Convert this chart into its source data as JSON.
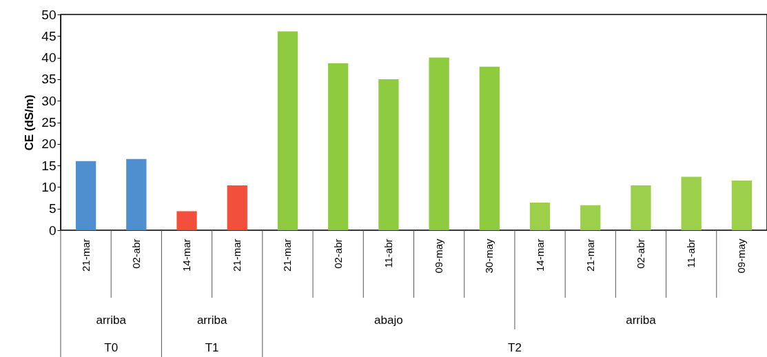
{
  "chart_data": {
    "type": "bar",
    "ylabel": "CE (dS/m)",
    "categories": [
      "21-mar",
      "02-abr",
      "14-mar",
      "21-mar",
      "21-mar",
      "02-abr",
      "11-abr",
      "09-may",
      "30-may",
      "14-mar",
      "21-mar",
      "02-abr",
      "11-abr",
      "09-may"
    ],
    "values": [
      16.0,
      16.5,
      4.4,
      10.4,
      46.1,
      38.7,
      35.0,
      40.0,
      37.9,
      6.4,
      5.8,
      10.4,
      12.4,
      11.5
    ],
    "colors": [
      "#4f8fcf",
      "#4f8fcf",
      "#f2503c",
      "#f2503c",
      "#8fcb3e",
      "#8fcb3e",
      "#8fcb3e",
      "#8fcb3e",
      "#8fcb3e",
      "#9ccf4a",
      "#9ccf4a",
      "#9ccf4a",
      "#9ccf4a",
      "#9ccf4a"
    ],
    "ylim": [
      0,
      50
    ],
    "yticks": [
      0,
      5,
      10,
      15,
      20,
      25,
      30,
      35,
      40,
      45,
      50
    ],
    "annotations": [
      "arriba",
      "arriba",
      "abajo",
      "arriba",
      "T0",
      "T1",
      "T2"
    ]
  }
}
